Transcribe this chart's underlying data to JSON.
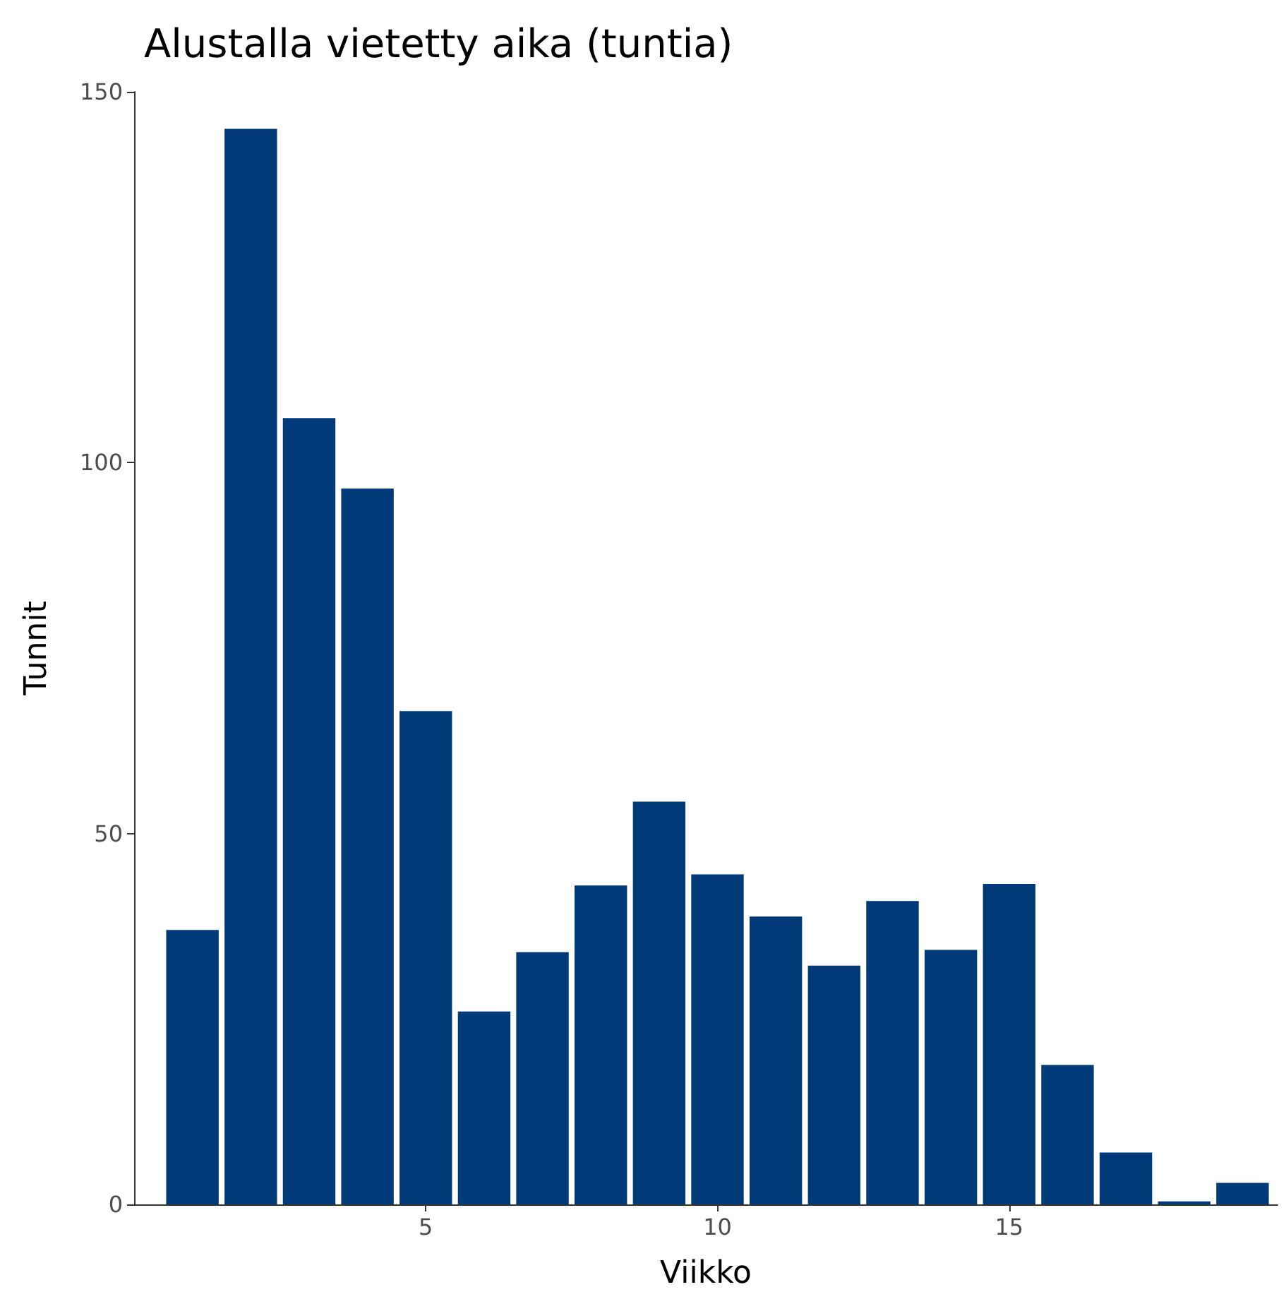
{
  "chart_data": {
    "type": "bar",
    "title": "Alustalla vietetty aika (tuntia)",
    "xlabel": "Viikko",
    "ylabel": "Tunnit",
    "x": [
      1,
      2,
      3,
      4,
      5,
      6,
      7,
      8,
      9,
      10,
      11,
      12,
      13,
      14,
      15,
      16,
      17,
      18,
      19
    ],
    "values": [
      37,
      145,
      106,
      96.5,
      66.5,
      26,
      34,
      43,
      54.3,
      44.5,
      38.8,
      32.2,
      40.9,
      34.3,
      43.2,
      18.8,
      7,
      0.4,
      2.9
    ],
    "color": "#003a78",
    "xlim": [
      0,
      19.6
    ],
    "xticks": [
      5,
      10,
      15
    ],
    "ylim": [
      0,
      150
    ],
    "yticks": [
      0,
      50,
      100,
      150
    ],
    "grid": false
  }
}
